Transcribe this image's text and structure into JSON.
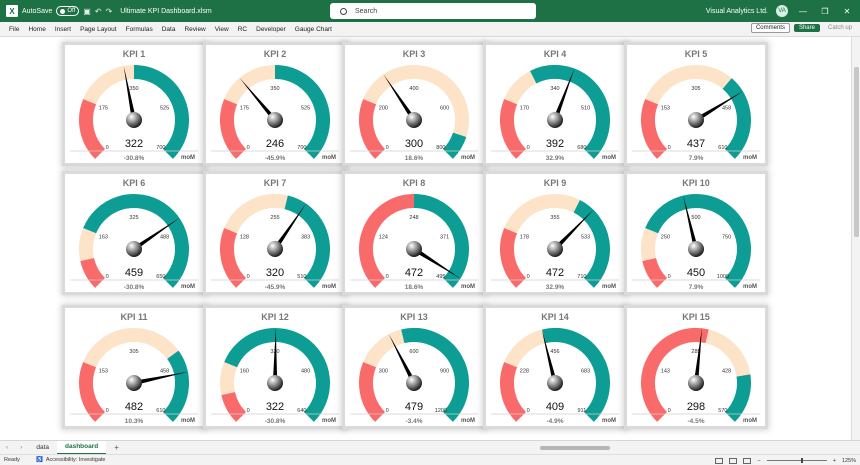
{
  "titlebar": {
    "autosave_label": "AutoSave",
    "autosave_state": "Off",
    "file_name": "Ultimate KPI Dashboard.xlsm",
    "search_placeholder": "Search",
    "account_name": "Visual Analytics Ltd."
  },
  "menu": {
    "items": [
      "File",
      "Home",
      "Insert",
      "Page Layout",
      "Formulas",
      "Data",
      "Review",
      "View",
      "RC",
      "Developer",
      "Gauge Chart"
    ],
    "comments_label": "Comments",
    "share_label": "Share",
    "catchup_label": "Catch up"
  },
  "colors": {
    "red": "#f96b6b",
    "peach": "#fde3c8",
    "teal": "#0e9d94",
    "needle": "#000000"
  },
  "chart_data": {
    "type": "gauge",
    "kpis": [
      {
        "title": "KPI 1",
        "value": 322,
        "max": 700,
        "scale": [
          "0",
          "175",
          "350",
          "525",
          "700"
        ],
        "red_end": 0.25,
        "peach_end": 0.5,
        "change": "-30.8%",
        "tag": "moM"
      },
      {
        "title": "KPI 2",
        "value": 246,
        "max": 700,
        "scale": [
          "0",
          "175",
          "350",
          "525",
          "700"
        ],
        "red_end": 0.25,
        "peach_end": 0.5,
        "change": "-45.9%",
        "tag": "moM"
      },
      {
        "title": "KPI 3",
        "value": 300,
        "max": 800,
        "scale": [
          "0",
          "200",
          "400",
          "600",
          "800"
        ],
        "red_end": 0.25,
        "peach_end": 0.9,
        "change": "18.6%",
        "tag": "moM"
      },
      {
        "title": "KPI 4",
        "value": 392,
        "max": 680,
        "scale": [
          "0",
          "170",
          "340",
          "510",
          "680"
        ],
        "red_end": 0.25,
        "peach_end": 0.4,
        "change": "32.9%",
        "tag": "moM"
      },
      {
        "title": "KPI 5",
        "value": 437,
        "max": 610,
        "scale": [
          "0",
          "153",
          "305",
          "458",
          "610"
        ],
        "red_end": 0.25,
        "peach_end": 0.65,
        "change": "7.9%",
        "tag": "moM"
      },
      {
        "title": "KPI 6",
        "value": 459,
        "max": 650,
        "scale": [
          "0",
          "163",
          "325",
          "488",
          "650"
        ],
        "red_end": 0.12,
        "peach_end": 0.25,
        "change": "-30.8%",
        "tag": "moM"
      },
      {
        "title": "KPI 7",
        "value": 320,
        "max": 510,
        "scale": [
          "0",
          "128",
          "255",
          "383",
          "510"
        ],
        "red_end": 0.25,
        "peach_end": 0.55,
        "change": "-45.9%",
        "tag": "moM"
      },
      {
        "title": "KPI 8",
        "value": 472,
        "max": 495,
        "scale": [
          "0",
          "124",
          "248",
          "371",
          "495"
        ],
        "red_end": 0.5,
        "peach_end": 0.5,
        "change": "18.6%",
        "tag": "moM"
      },
      {
        "title": "KPI 9",
        "value": 472,
        "max": 710,
        "scale": [
          "0",
          "178",
          "355",
          "533",
          "710"
        ],
        "red_end": 0.25,
        "peach_end": 0.6,
        "change": "32.9%",
        "tag": "moM"
      },
      {
        "title": "KPI 10",
        "value": 450,
        "max": 1000,
        "scale": [
          "0",
          "250",
          "500",
          "750",
          "1000"
        ],
        "red_end": 0.12,
        "peach_end": 0.25,
        "change": "7.9%",
        "tag": "moM"
      },
      {
        "title": "KPI 11",
        "value": 482,
        "max": 610,
        "scale": [
          "0",
          "153",
          "305",
          "458",
          "610"
        ],
        "red_end": 0.25,
        "peach_end": 0.7,
        "change": "10.3%",
        "tag": "moM"
      },
      {
        "title": "KPI 12",
        "value": 322,
        "max": 640,
        "scale": [
          "0",
          "160",
          "320",
          "480",
          "640"
        ],
        "red_end": 0.12,
        "peach_end": 0.25,
        "change": "-30.8%",
        "tag": "moM"
      },
      {
        "title": "KPI 13",
        "value": 479,
        "max": 1200,
        "scale": [
          "0",
          "300",
          "600",
          "900",
          "1200"
        ],
        "red_end": 0.25,
        "peach_end": 0.45,
        "change": "-3.4%",
        "tag": "moM"
      },
      {
        "title": "KPI 14",
        "value": 409,
        "max": 911,
        "scale": [
          "0",
          "228",
          "456",
          "683",
          "911"
        ],
        "red_end": 0.25,
        "peach_end": 0.45,
        "change": "-4.9%",
        "tag": "moM"
      },
      {
        "title": "KPI 15",
        "value": 298,
        "max": 570,
        "scale": [
          "0",
          "143",
          "285",
          "428",
          "570"
        ],
        "red_end": 0.55,
        "peach_end": 0.8,
        "change": "-4.5%",
        "tag": "moM"
      }
    ]
  },
  "tabs": {
    "sheets": [
      "data",
      "dashboard"
    ],
    "active": "dashboard"
  },
  "status": {
    "ready": "Ready",
    "accessibility": "Accessibility: Investigate",
    "zoom": "125%"
  }
}
